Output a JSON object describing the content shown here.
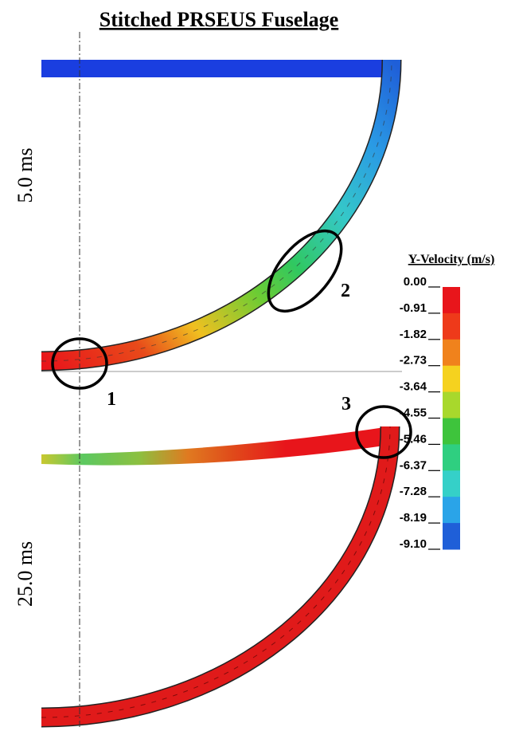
{
  "title": "Stitched PRSEUS Fuselage",
  "panels": [
    {
      "label": "5.0 ms"
    },
    {
      "label": "25.0 ms"
    }
  ],
  "callouts": [
    "1",
    "2",
    "3"
  ],
  "legend": {
    "title": "Y-Velocity (m/s)",
    "labels": [
      "0.00",
      "-0.91",
      "-1.82",
      "-2.73",
      "-3.64",
      "-4.55",
      "-5.46",
      "-6.37",
      "-7.28",
      "-8.19",
      "-9.10"
    ],
    "colors": [
      "#e8151b",
      "#ee3a1a",
      "#f0821c",
      "#f5d21f",
      "#a8d82c",
      "#3ec43c",
      "#2fcf80",
      "#35d0c8",
      "#2aa4e8",
      "#1f5fd8",
      "#1a1ee8"
    ]
  }
}
